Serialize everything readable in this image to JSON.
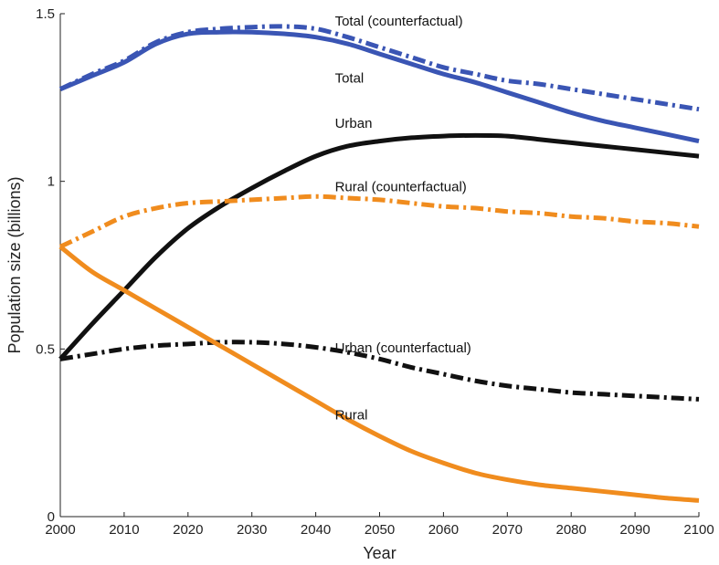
{
  "chart_data": {
    "type": "line",
    "title": "",
    "xlabel": "Year",
    "ylabel": "Population size (billions)",
    "xlim": [
      2000,
      2100
    ],
    "ylim": [
      0,
      1.5
    ],
    "x_ticks": [
      2000,
      2010,
      2020,
      2030,
      2040,
      2050,
      2060,
      2070,
      2080,
      2090,
      2100
    ],
    "y_ticks": [
      0,
      0.5,
      1,
      1.5
    ],
    "y_tick_labels": [
      "0",
      "0.5",
      "1",
      "1.5"
    ],
    "grid": false,
    "legend": "none",
    "x": [
      2000,
      2005,
      2010,
      2015,
      2020,
      2025,
      2030,
      2035,
      2040,
      2045,
      2050,
      2055,
      2060,
      2065,
      2070,
      2075,
      2080,
      2085,
      2090,
      2095,
      2100
    ],
    "series": [
      {
        "name": "Total (counterfactual)",
        "color": "#3a55b4",
        "dash": "dashdot",
        "values": [
          1.275,
          1.32,
          1.36,
          1.415,
          1.445,
          1.455,
          1.46,
          1.462,
          1.455,
          1.43,
          1.4,
          1.37,
          1.34,
          1.32,
          1.3,
          1.29,
          1.275,
          1.26,
          1.245,
          1.23,
          1.215
        ]
      },
      {
        "name": "Total",
        "color": "#3a55b4",
        "dash": "solid",
        "values": [
          1.275,
          1.315,
          1.355,
          1.41,
          1.44,
          1.445,
          1.445,
          1.44,
          1.43,
          1.41,
          1.38,
          1.35,
          1.32,
          1.295,
          1.265,
          1.235,
          1.205,
          1.18,
          1.16,
          1.14,
          1.12
        ]
      },
      {
        "name": "Urban",
        "color": "#111111",
        "dash": "solid",
        "values": [
          0.47,
          0.575,
          0.675,
          0.775,
          0.86,
          0.925,
          0.98,
          1.03,
          1.075,
          1.105,
          1.12,
          1.13,
          1.135,
          1.137,
          1.135,
          1.125,
          1.115,
          1.105,
          1.095,
          1.085,
          1.075
        ]
      },
      {
        "name": "Rural (counterfactual)",
        "color": "#f08c1e",
        "dash": "dashdot",
        "values": [
          0.805,
          0.85,
          0.895,
          0.92,
          0.935,
          0.94,
          0.945,
          0.95,
          0.955,
          0.95,
          0.945,
          0.935,
          0.925,
          0.92,
          0.91,
          0.905,
          0.895,
          0.89,
          0.88,
          0.875,
          0.865
        ]
      },
      {
        "name": "Urban (counterfactual)",
        "color": "#111111",
        "dash": "dashdot",
        "values": [
          0.47,
          0.485,
          0.5,
          0.51,
          0.515,
          0.52,
          0.52,
          0.515,
          0.505,
          0.49,
          0.47,
          0.445,
          0.425,
          0.405,
          0.39,
          0.38,
          0.37,
          0.365,
          0.36,
          0.355,
          0.35
        ]
      },
      {
        "name": "Rural",
        "color": "#f08c1e",
        "dash": "solid",
        "values": [
          0.805,
          0.73,
          0.675,
          0.62,
          0.565,
          0.51,
          0.455,
          0.4,
          0.345,
          0.29,
          0.24,
          0.195,
          0.16,
          0.13,
          0.11,
          0.095,
          0.085,
          0.075,
          0.065,
          0.055,
          0.048
        ]
      }
    ],
    "annotations": [
      {
        "series": "Total (counterfactual)",
        "text": "Total (counterfactual)",
        "x": 2043,
        "y": 1.465
      },
      {
        "series": "Total",
        "text": "Total",
        "x": 2043,
        "y": 1.295
      },
      {
        "series": "Urban",
        "text": "Urban",
        "x": 2043,
        "y": 1.16
      },
      {
        "series": "Rural (counterfactual)",
        "text": "Rural (counterfactual)",
        "x": 2043,
        "y": 0.97
      },
      {
        "series": "Urban (counterfactual)",
        "text": "Urban (counterfactual)",
        "x": 2043,
        "y": 0.49
      },
      {
        "series": "Rural",
        "text": "Rural",
        "x": 2043,
        "y": 0.29
      }
    ]
  }
}
